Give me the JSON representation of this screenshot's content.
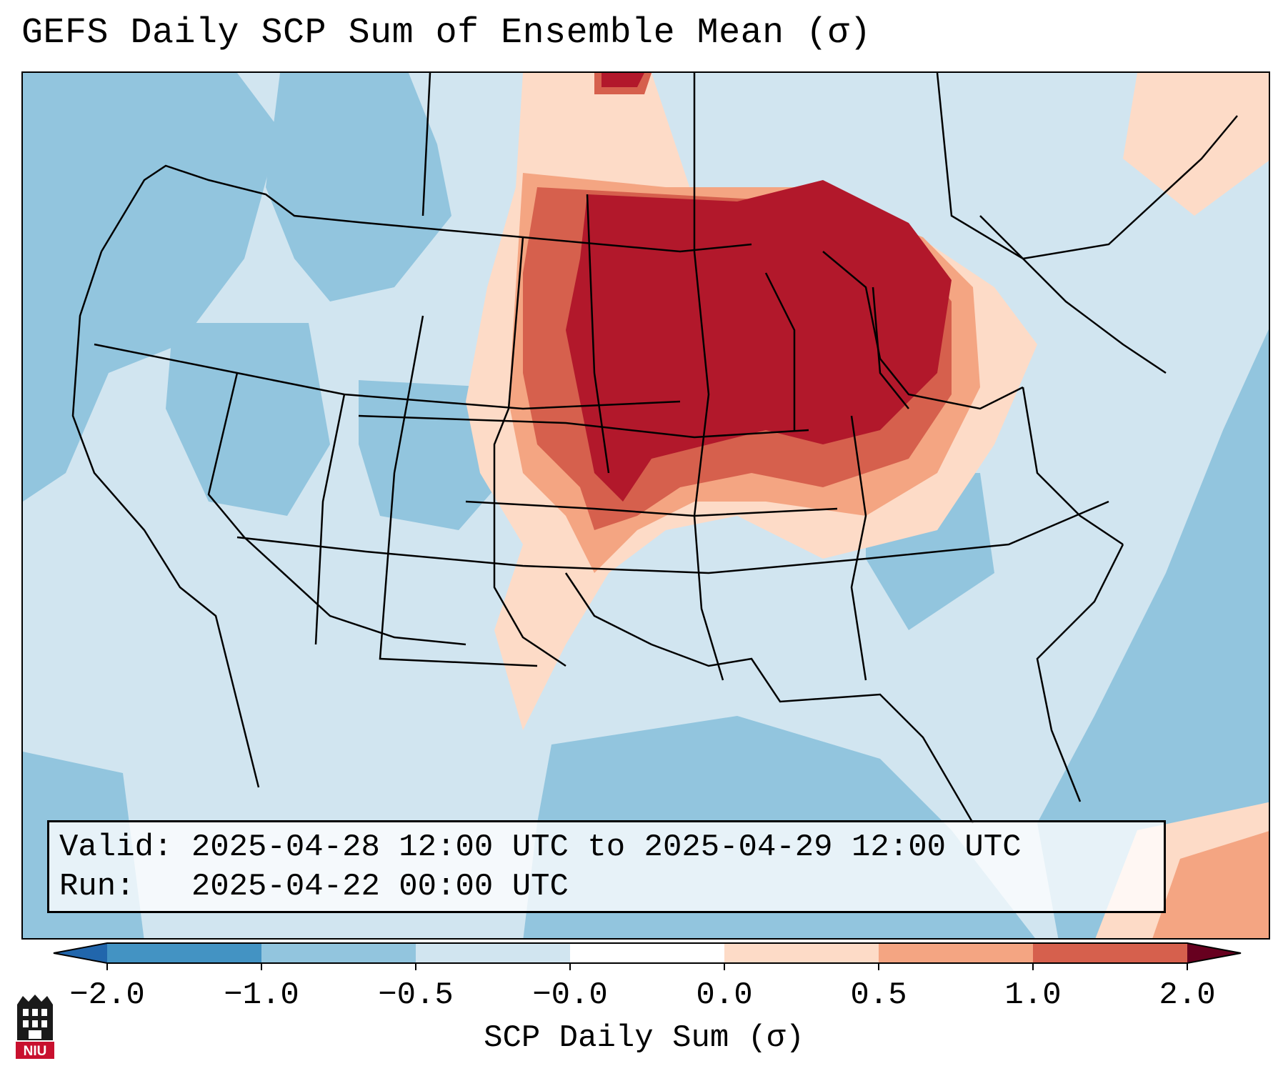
{
  "title": "GEFS Daily SCP Sum of Ensemble Mean (σ)",
  "info": {
    "valid_line": "Valid: 2025-04-28 12:00 UTC to 2025-04-29 12:00 UTC",
    "run_line": "Run:   2025-04-22 00:00 UTC"
  },
  "colorbar": {
    "label": "SCP Daily Sum (σ)",
    "ticks": [
      "−2.0",
      "−1.0",
      "−0.5",
      "−0.0",
      "0.0",
      "0.5",
      "1.0",
      "2.0"
    ],
    "colors": [
      "#4393c3",
      "#92c5de",
      "#d1e5f0",
      "#fddbc7",
      "#f4a582",
      "#d6604d",
      "#b2182b"
    ],
    "under_color": "#2166ac",
    "over_color": "#67001f"
  },
  "logo": {
    "icon": "niu-logo-icon",
    "text": "NIU"
  }
}
